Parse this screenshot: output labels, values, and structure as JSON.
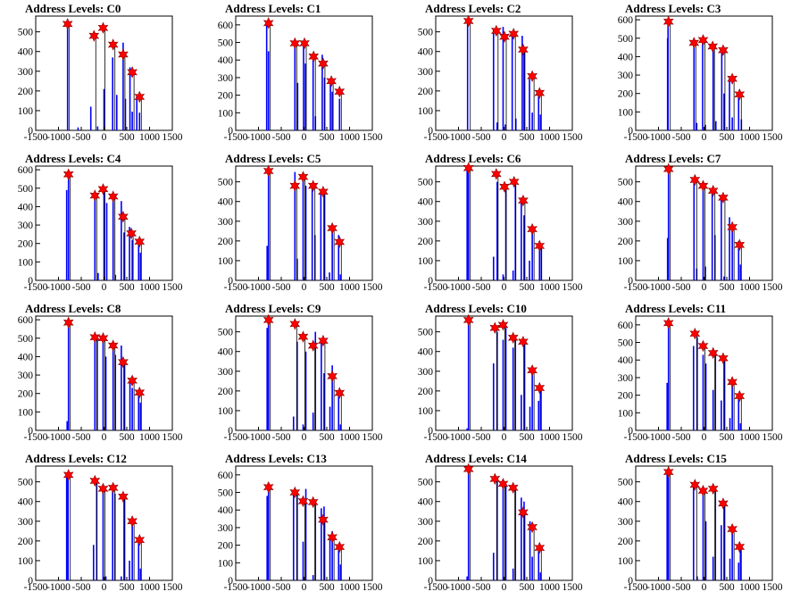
{
  "colors": {
    "bars": "#0000ff",
    "markers": "#ff0000",
    "axes": "#000000"
  },
  "chart_data": [
    {
      "type": "bar",
      "title": "Address Levels: C0",
      "xlim": [
        -1500,
        1500
      ],
      "ylim": [
        0,
        580
      ],
      "yticks": [
        0,
        100,
        200,
        300,
        400,
        500
      ],
      "xticks": [
        -1500,
        -1000,
        -500,
        0,
        500,
        1000,
        1500
      ],
      "bars": {
        "x": [
          -800,
          -570,
          -290,
          -140,
          0,
          190,
          280,
          420,
          470,
          570,
          620,
          720,
          780
        ],
        "values": [
          540,
          15,
          120,
          20,
          210,
          370,
          180,
          445,
          160,
          320,
          95,
          180,
          90
        ]
      },
      "markers": {
        "x": [
          -800,
          -220,
          -20,
          200,
          420,
          620,
          780
        ],
        "values": [
          540,
          480,
          520,
          435,
          385,
          295,
          170
        ]
      }
    },
    {
      "type": "bar",
      "title": "Address Levels: C1",
      "xlim": [
        -1500,
        1500
      ],
      "ylim": [
        0,
        650
      ],
      "yticks": [
        0,
        100,
        200,
        300,
        400,
        500,
        600
      ],
      "xticks": [
        -1500,
        -1000,
        -500,
        0,
        500,
        1000,
        1500
      ],
      "bars": {
        "x": [
          -820,
          -780,
          -200,
          -140,
          -10,
          30,
          200,
          250,
          400,
          450,
          580,
          620,
          780
        ],
        "values": [
          600,
          450,
          480,
          270,
          490,
          380,
          420,
          80,
          430,
          300,
          280,
          220,
          180
        ]
      },
      "markers": {
        "x": [
          -780,
          -200,
          10,
          210,
          420,
          600,
          780
        ],
        "values": [
          610,
          495,
          495,
          420,
          380,
          280,
          220
        ]
      }
    },
    {
      "type": "bar",
      "title": "Address Levels: C2",
      "xlim": [
        -1500,
        1500
      ],
      "ylim": [
        0,
        580
      ],
      "yticks": [
        0,
        100,
        200,
        300,
        400,
        500
      ],
      "xticks": [
        -1500,
        -1000,
        -500,
        0,
        500,
        1000,
        1500
      ],
      "bars": {
        "x": [
          -800,
          -230,
          -150,
          -20,
          30,
          180,
          260,
          400,
          440,
          560,
          620,
          760,
          800
        ],
        "values": [
          555,
          510,
          40,
          525,
          30,
          500,
          60,
          480,
          400,
          260,
          90,
          200,
          80
        ]
      },
      "markers": {
        "x": [
          -780,
          -170,
          10,
          210,
          420,
          620,
          780
        ],
        "values": [
          555,
          505,
          475,
          490,
          410,
          275,
          190
        ]
      }
    },
    {
      "type": "bar",
      "title": "Address Levels: C3",
      "xlim": [
        -1500,
        1500
      ],
      "ylim": [
        0,
        620
      ],
      "yticks": [
        0,
        100,
        200,
        300,
        400,
        500,
        600
      ],
      "xticks": [
        -1500,
        -1000,
        -500,
        0,
        500,
        1000,
        1500
      ],
      "bars": {
        "x": [
          -800,
          -790,
          -220,
          -160,
          -30,
          30,
          200,
          260,
          390,
          440,
          560,
          620,
          760,
          820
        ],
        "values": [
          500,
          590,
          480,
          40,
          480,
          30,
          450,
          50,
          430,
          200,
          280,
          70,
          180,
          60
        ]
      },
      "markers": {
        "x": [
          -780,
          -220,
          -20,
          190,
          420,
          620,
          780
        ],
        "values": [
          590,
          475,
          490,
          455,
          435,
          280,
          195
        ]
      }
    },
    {
      "type": "bar",
      "title": "Address Levels: C4",
      "xlim": [
        -1500,
        1500
      ],
      "ylim": [
        0,
        620
      ],
      "yticks": [
        0,
        100,
        200,
        300,
        400,
        500,
        600
      ],
      "xticks": [
        -1500,
        -1000,
        -500,
        0,
        500,
        1000,
        1500
      ],
      "bars": {
        "x": [
          -820,
          -780,
          -200,
          -130,
          0,
          60,
          200,
          250,
          380,
          440,
          560,
          620,
          760,
          800
        ],
        "values": [
          490,
          560,
          460,
          40,
          500,
          420,
          460,
          30,
          430,
          260,
          290,
          220,
          210,
          150
        ]
      },
      "markers": {
        "x": [
          -780,
          -200,
          -20,
          200,
          420,
          600,
          780
        ],
        "values": [
          575,
          460,
          495,
          455,
          345,
          255,
          210
        ]
      }
    },
    {
      "type": "bar",
      "title": "Address Levels: C5",
      "xlim": [
        -1500,
        1500
      ],
      "ylim": [
        0,
        580
      ],
      "yticks": [
        0,
        100,
        200,
        300,
        400,
        500
      ],
      "xticks": [
        -1500,
        -1000,
        -500,
        0,
        500,
        1000,
        1500
      ],
      "bars": {
        "x": [
          -810,
          -780,
          -200,
          -150,
          -20,
          40,
          180,
          240,
          370,
          440,
          560,
          620,
          760,
          800
        ],
        "values": [
          175,
          560,
          550,
          110,
          520,
          480,
          480,
          230,
          440,
          450,
          40,
          270,
          230,
          30
        ]
      },
      "markers": {
        "x": [
          -780,
          -200,
          -20,
          200,
          420,
          620,
          780
        ],
        "values": [
          555,
          480,
          525,
          480,
          450,
          265,
          195
        ]
      }
    },
    {
      "type": "bar",
      "title": "Address Levels: C6",
      "xlim": [
        -1500,
        1500
      ],
      "ylim": [
        0,
        580
      ],
      "yticks": [
        0,
        100,
        200,
        300,
        400,
        500
      ],
      "xticks": [
        -1500,
        -1000,
        -500,
        0,
        500,
        1000,
        1500
      ],
      "bars": {
        "x": [
          -810,
          -780,
          -230,
          -150,
          -20,
          40,
          200,
          250,
          380,
          440,
          560,
          620,
          780,
          820
        ],
        "values": [
          560,
          550,
          120,
          500,
          30,
          490,
          50,
          500,
          420,
          330,
          100,
          250,
          200,
          180
        ]
      },
      "markers": {
        "x": [
          -780,
          -170,
          10,
          220,
          420,
          620,
          780
        ],
        "values": [
          570,
          540,
          475,
          500,
          405,
          260,
          175
        ]
      }
    },
    {
      "type": "bar",
      "title": "Address Levels: C7",
      "xlim": [
        -1500,
        1500
      ],
      "ylim": [
        0,
        580
      ],
      "yticks": [
        0,
        100,
        200,
        300,
        400,
        500
      ],
      "xticks": [
        -1500,
        -1000,
        -500,
        0,
        500,
        1000,
        1500
      ],
      "bars": {
        "x": [
          -800,
          -780,
          -220,
          -160,
          -20,
          30,
          180,
          240,
          380,
          440,
          560,
          620,
          760,
          800
        ],
        "values": [
          215,
          560,
          500,
          60,
          490,
          70,
          460,
          230,
          430,
          20,
          320,
          280,
          200,
          80
        ]
      },
      "markers": {
        "x": [
          -780,
          -200,
          -20,
          200,
          420,
          620,
          780
        ],
        "values": [
          565,
          510,
          480,
          455,
          420,
          270,
          180
        ]
      }
    },
    {
      "type": "bar",
      "title": "Address Levels: C8",
      "xlim": [
        -1500,
        1500
      ],
      "ylim": [
        0,
        620
      ],
      "yticks": [
        0,
        100,
        200,
        300,
        400,
        500,
        600
      ],
      "xticks": [
        -1500,
        -1000,
        -500,
        0,
        500,
        1000,
        1500
      ],
      "bars": {
        "x": [
          -810,
          -780,
          -200,
          -150,
          -20,
          40,
          200,
          250,
          380,
          440,
          570,
          620,
          760,
          800
        ],
        "values": [
          50,
          590,
          500,
          490,
          490,
          400,
          470,
          410,
          460,
          370,
          280,
          230,
          210,
          150
        ]
      },
      "markers": {
        "x": [
          -780,
          -200,
          -20,
          200,
          420,
          620,
          780
        ],
        "values": [
          585,
          505,
          500,
          460,
          370,
          270,
          205
        ]
      }
    },
    {
      "type": "bar",
      "title": "Address Levels: C9",
      "xlim": [
        -1500,
        1500
      ],
      "ylim": [
        0,
        580
      ],
      "yticks": [
        0,
        100,
        200,
        300,
        400,
        500
      ],
      "xticks": [
        -1500,
        -1000,
        -500,
        0,
        500,
        1000,
        1500
      ],
      "bars": {
        "x": [
          -810,
          -780,
          -230,
          -150,
          -20,
          40,
          200,
          250,
          380,
          440,
          570,
          620,
          760,
          800
        ],
        "values": [
          520,
          560,
          70,
          450,
          30,
          400,
          90,
          500,
          460,
          290,
          120,
          330,
          190,
          30
        ]
      },
      "markers": {
        "x": [
          -780,
          -200,
          -20,
          200,
          420,
          620,
          780
        ],
        "values": [
          560,
          540,
          475,
          430,
          455,
          275,
          190
        ]
      }
    },
    {
      "type": "bar",
      "title": "Address Levels: C10",
      "xlim": [
        -1500,
        1500
      ],
      "ylim": [
        0,
        580
      ],
      "yticks": [
        0,
        100,
        200,
        300,
        400,
        500
      ],
      "xticks": [
        -1500,
        -1000,
        -500,
        0,
        500,
        1000,
        1500
      ],
      "bars": {
        "x": [
          -810,
          -780,
          -230,
          -150,
          -20,
          40,
          200,
          250,
          380,
          440,
          570,
          620,
          760,
          800
        ],
        "values": [
          10,
          560,
          340,
          500,
          460,
          520,
          420,
          480,
          180,
          440,
          120,
          300,
          150,
          200
        ]
      },
      "markers": {
        "x": [
          -780,
          -200,
          -20,
          200,
          420,
          620,
          780
        ],
        "values": [
          560,
          520,
          535,
          470,
          450,
          305,
          215
        ]
      }
    },
    {
      "type": "bar",
      "title": "Address Levels: C11",
      "xlim": [
        -1500,
        1500
      ],
      "ylim": [
        0,
        650
      ],
      "yticks": [
        0,
        100,
        200,
        300,
        400,
        500,
        600
      ],
      "xticks": [
        -1500,
        -1000,
        -500,
        0,
        500,
        1000,
        1500
      ],
      "bars": {
        "x": [
          -810,
          -780,
          -230,
          -150,
          -20,
          40,
          200,
          250,
          380,
          440,
          570,
          620,
          760,
          800
        ],
        "values": [
          270,
          610,
          480,
          530,
          430,
          380,
          230,
          440,
          170,
          400,
          70,
          250,
          190,
          40
        ]
      },
      "markers": {
        "x": [
          -780,
          -200,
          -20,
          200,
          420,
          620,
          780
        ],
        "values": [
          610,
          550,
          480,
          440,
          410,
          275,
          195
        ]
      }
    },
    {
      "type": "bar",
      "title": "Address Levels: C12",
      "xlim": [
        -1500,
        1500
      ],
      "ylim": [
        0,
        580
      ],
      "yticks": [
        0,
        100,
        200,
        300,
        400,
        500
      ],
      "xticks": [
        -1500,
        -1000,
        -500,
        0,
        500,
        1000,
        1500
      ],
      "bars": {
        "x": [
          -820,
          -790,
          -230,
          -160,
          -20,
          40,
          190,
          240,
          380,
          440,
          560,
          620,
          760,
          800
        ],
        "values": [
          530,
          520,
          180,
          500,
          460,
          20,
          470,
          440,
          20,
          420,
          100,
          300,
          190,
          60
        ]
      },
      "markers": {
        "x": [
          -780,
          -200,
          -20,
          200,
          420,
          620,
          780
        ],
        "values": [
          535,
          505,
          465,
          470,
          425,
          300,
          205
        ]
      }
    },
    {
      "type": "bar",
      "title": "Address Levels: C13",
      "xlim": [
        -1500,
        1500
      ],
      "ylim": [
        0,
        650
      ],
      "yticks": [
        0,
        100,
        200,
        300,
        400,
        500,
        600
      ],
      "xticks": [
        -1500,
        -1000,
        -500,
        0,
        500,
        1000,
        1500
      ],
      "bars": {
        "x": [
          -810,
          -780,
          -230,
          -150,
          -20,
          40,
          200,
          250,
          380,
          440,
          570,
          620,
          760,
          800
        ],
        "values": [
          480,
          550,
          490,
          500,
          220,
          520,
          30,
          460,
          410,
          420,
          230,
          280,
          180,
          90
        ]
      },
      "markers": {
        "x": [
          -780,
          -200,
          -20,
          200,
          420,
          620,
          780
        ],
        "values": [
          530,
          500,
          450,
          445,
          345,
          245,
          190
        ]
      }
    },
    {
      "type": "bar",
      "title": "Address Levels: C14",
      "xlim": [
        -1500,
        1500
      ],
      "ylim": [
        0,
        580
      ],
      "yticks": [
        0,
        100,
        200,
        300,
        400,
        500
      ],
      "xticks": [
        -1500,
        -1000,
        -500,
        0,
        500,
        1000,
        1500
      ],
      "bars": {
        "x": [
          -810,
          -780,
          -230,
          -150,
          -20,
          40,
          200,
          250,
          380,
          440,
          570,
          620,
          760,
          800
        ],
        "values": [
          20,
          560,
          140,
          520,
          480,
          490,
          60,
          470,
          420,
          400,
          300,
          120,
          150,
          40
        ]
      },
      "markers": {
        "x": [
          -780,
          -200,
          -20,
          200,
          420,
          620,
          780
        ],
        "values": [
          565,
          515,
          490,
          470,
          345,
          270,
          165
        ]
      }
    },
    {
      "type": "bar",
      "title": "Address Levels: C15",
      "xlim": [
        -1500,
        1500
      ],
      "ylim": [
        0,
        580
      ],
      "yticks": [
        0,
        100,
        200,
        300,
        400,
        500
      ],
      "xticks": [
        -1500,
        -1000,
        -500,
        0,
        500,
        1000,
        1500
      ],
      "bars": {
        "x": [
          -810,
          -780,
          -230,
          -150,
          -20,
          40,
          200,
          250,
          380,
          440,
          570,
          620,
          760,
          800
        ],
        "values": [
          550,
          540,
          490,
          20,
          470,
          300,
          120,
          460,
          280,
          400,
          110,
          250,
          90,
          180
        ]
      },
      "markers": {
        "x": [
          -780,
          -200,
          -20,
          200,
          420,
          620,
          780
        ],
        "values": [
          550,
          485,
          455,
          465,
          390,
          260,
          170
        ]
      }
    }
  ]
}
